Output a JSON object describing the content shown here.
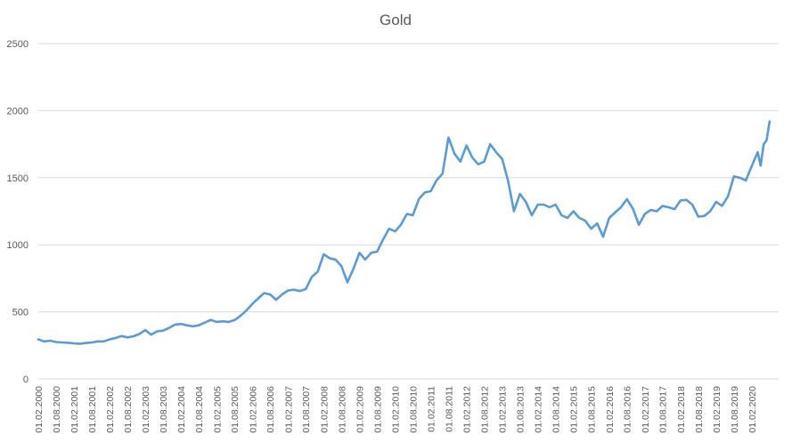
{
  "chart_data": {
    "type": "line",
    "title": "Gold",
    "xlabel": "",
    "ylabel": "",
    "ylim": [
      0,
      2500
    ],
    "yticks": [
      "0",
      "500",
      "1000",
      "1500",
      "2000",
      "2500"
    ],
    "grid": true,
    "legend": "none",
    "x_tick_labels": [
      "01.02.2000",
      "01.08.2000",
      "01.02.2001",
      "01.08.2001",
      "01.02.2002",
      "01.08.2002",
      "01.02.2003",
      "01.08.2003",
      "01.02.2004",
      "01.08.2004",
      "01.02.2005",
      "01.08.2005",
      "01.02.2006",
      "01.08.2006",
      "01.02.2007",
      "01.08.2007",
      "01.02.2008",
      "01.08.2008",
      "01.02.2009",
      "01.08.2009",
      "01.02.2010",
      "01.08.2010",
      "01.02.2011",
      "01.08.2011",
      "01.02.2012",
      "01.08.2012",
      "01.02.2013",
      "01.08.2013",
      "01.02.2014",
      "01.08.2014",
      "01.02.2015",
      "01.08.2015",
      "01.02.2016",
      "01.08.2016",
      "01.02.2017",
      "01.08.2017",
      "01.02.2018",
      "01.08.2018",
      "01.02.2019",
      "01.08.2019",
      "01.02.2020"
    ],
    "series": [
      {
        "color": "#5b9bd5",
        "points": [
          [
            "2000-02-01",
            295
          ],
          [
            "2000-04-01",
            280
          ],
          [
            "2000-06-01",
            285
          ],
          [
            "2000-08-01",
            275
          ],
          [
            "2000-10-01",
            272
          ],
          [
            "2000-12-01",
            270
          ],
          [
            "2001-02-01",
            265
          ],
          [
            "2001-04-01",
            262
          ],
          [
            "2001-06-01",
            268
          ],
          [
            "2001-08-01",
            272
          ],
          [
            "2001-10-01",
            280
          ],
          [
            "2001-12-01",
            280
          ],
          [
            "2002-02-01",
            295
          ],
          [
            "2002-04-01",
            305
          ],
          [
            "2002-06-01",
            320
          ],
          [
            "2002-08-01",
            310
          ],
          [
            "2002-10-01",
            318
          ],
          [
            "2002-12-01",
            335
          ],
          [
            "2003-02-01",
            365
          ],
          [
            "2003-04-01",
            330
          ],
          [
            "2003-06-01",
            355
          ],
          [
            "2003-08-01",
            360
          ],
          [
            "2003-10-01",
            380
          ],
          [
            "2003-12-01",
            405
          ],
          [
            "2004-02-01",
            410
          ],
          [
            "2004-04-01",
            400
          ],
          [
            "2004-06-01",
            392
          ],
          [
            "2004-08-01",
            400
          ],
          [
            "2004-10-01",
            420
          ],
          [
            "2004-12-01",
            440
          ],
          [
            "2005-02-01",
            425
          ],
          [
            "2005-04-01",
            430
          ],
          [
            "2005-06-01",
            425
          ],
          [
            "2005-08-01",
            438
          ],
          [
            "2005-10-01",
            470
          ],
          [
            "2005-12-01",
            510
          ],
          [
            "2006-02-01",
            560
          ],
          [
            "2006-04-01",
            600
          ],
          [
            "2006-06-01",
            640
          ],
          [
            "2006-08-01",
            630
          ],
          [
            "2006-10-01",
            590
          ],
          [
            "2006-12-01",
            630
          ],
          [
            "2007-02-01",
            660
          ],
          [
            "2007-04-01",
            665
          ],
          [
            "2007-06-01",
            655
          ],
          [
            "2007-08-01",
            670
          ],
          [
            "2007-10-01",
            760
          ],
          [
            "2007-12-01",
            800
          ],
          [
            "2008-02-01",
            930
          ],
          [
            "2008-04-01",
            900
          ],
          [
            "2008-06-01",
            890
          ],
          [
            "2008-08-01",
            840
          ],
          [
            "2008-10-01",
            720
          ],
          [
            "2008-12-01",
            820
          ],
          [
            "2009-02-01",
            940
          ],
          [
            "2009-04-01",
            890
          ],
          [
            "2009-06-01",
            940
          ],
          [
            "2009-08-01",
            950
          ],
          [
            "2009-10-01",
            1040
          ],
          [
            "2009-12-01",
            1120
          ],
          [
            "2010-02-01",
            1100
          ],
          [
            "2010-04-01",
            1150
          ],
          [
            "2010-06-01",
            1230
          ],
          [
            "2010-08-01",
            1220
          ],
          [
            "2010-10-01",
            1340
          ],
          [
            "2010-12-01",
            1390
          ],
          [
            "2011-02-01",
            1400
          ],
          [
            "2011-04-01",
            1480
          ],
          [
            "2011-06-01",
            1530
          ],
          [
            "2011-08-01",
            1800
          ],
          [
            "2011-10-01",
            1680
          ],
          [
            "2011-12-01",
            1620
          ],
          [
            "2012-02-01",
            1740
          ],
          [
            "2012-04-01",
            1650
          ],
          [
            "2012-06-01",
            1600
          ],
          [
            "2012-08-01",
            1620
          ],
          [
            "2012-10-01",
            1750
          ],
          [
            "2012-12-01",
            1690
          ],
          [
            "2013-02-01",
            1640
          ],
          [
            "2013-04-01",
            1480
          ],
          [
            "2013-06-01",
            1250
          ],
          [
            "2013-08-01",
            1380
          ],
          [
            "2013-10-01",
            1320
          ],
          [
            "2013-12-01",
            1220
          ],
          [
            "2014-02-01",
            1300
          ],
          [
            "2014-04-01",
            1300
          ],
          [
            "2014-06-01",
            1280
          ],
          [
            "2014-08-01",
            1300
          ],
          [
            "2014-10-01",
            1220
          ],
          [
            "2014-12-01",
            1200
          ],
          [
            "2015-02-01",
            1250
          ],
          [
            "2015-04-01",
            1200
          ],
          [
            "2015-06-01",
            1180
          ],
          [
            "2015-08-01",
            1120
          ],
          [
            "2015-10-01",
            1160
          ],
          [
            "2015-12-01",
            1060
          ],
          [
            "2016-02-01",
            1200
          ],
          [
            "2016-04-01",
            1240
          ],
          [
            "2016-06-01",
            1280
          ],
          [
            "2016-08-01",
            1340
          ],
          [
            "2016-10-01",
            1270
          ],
          [
            "2016-12-01",
            1150
          ],
          [
            "2017-02-01",
            1230
          ],
          [
            "2017-04-01",
            1260
          ],
          [
            "2017-06-01",
            1250
          ],
          [
            "2017-08-01",
            1290
          ],
          [
            "2017-10-01",
            1280
          ],
          [
            "2017-12-01",
            1265
          ],
          [
            "2018-02-01",
            1330
          ],
          [
            "2018-04-01",
            1335
          ],
          [
            "2018-06-01",
            1300
          ],
          [
            "2018-08-01",
            1210
          ],
          [
            "2018-10-01",
            1215
          ],
          [
            "2018-12-01",
            1250
          ],
          [
            "2019-02-01",
            1320
          ],
          [
            "2019-04-01",
            1290
          ],
          [
            "2019-06-01",
            1360
          ],
          [
            "2019-08-01",
            1510
          ],
          [
            "2019-10-01",
            1500
          ],
          [
            "2019-12-01",
            1480
          ],
          [
            "2020-02-01",
            1590
          ],
          [
            "2020-04-01",
            1690
          ],
          [
            "2020-05-01",
            1590
          ],
          [
            "2020-06-01",
            1750
          ],
          [
            "2020-07-01",
            1780
          ],
          [
            "2020-08-01",
            1920
          ]
        ]
      }
    ]
  }
}
